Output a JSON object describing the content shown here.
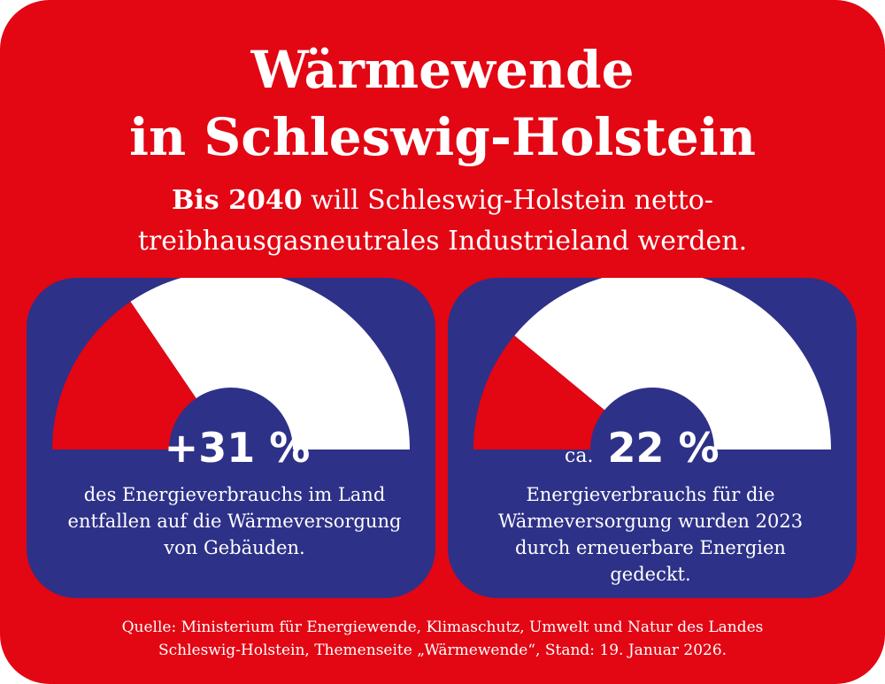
{
  "title_line1": "Wärmewende",
  "title_line2": "in Schleswig-Holstein",
  "subtitle_bold": "Bis 2040",
  "subtitle_line1_rest": " will Schleswig-Holstein netto-",
  "subtitle_line2": "treibhausgasneutrales Industrieland werden.",
  "colors": {
    "background": "#e30613",
    "panel": "#2e3188",
    "gauge_filled": "#e30613",
    "gauge_remaining": "#ffffff"
  },
  "chart_data": [
    {
      "type": "pie",
      "shape": "half-donut gauge",
      "value_percent": 31,
      "label": "+31 %",
      "prefix": "",
      "description": [
        "des Energieverbrauchs im Land",
        "entfallen auf die Wärmeversorgung",
        "von Gebäuden."
      ]
    },
    {
      "type": "pie",
      "shape": "half-donut gauge",
      "value_percent": 22,
      "label": "22 %",
      "prefix": "ca.",
      "description": [
        "Energieverbrauchs für die",
        "Wärmeversorgung wurden 2023",
        "durch erneuerbare Energien",
        "gedeckt."
      ]
    }
  ],
  "source_line1": "Quelle: Ministerium für Energiewende, Klimaschutz, Umwelt und Natur des Landes",
  "source_line2": "Schleswig-Holstein, Themenseite „Wärmewende“, Stand: 19. Januar 2026."
}
